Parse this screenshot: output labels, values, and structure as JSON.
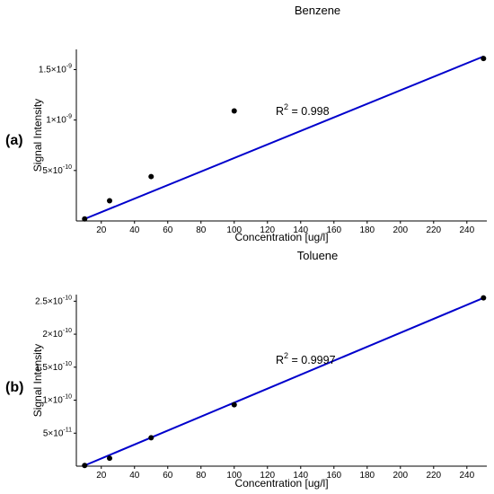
{
  "chart_data": [
    {
      "type": "scatter",
      "panel_label": "(a)",
      "title": "Benzene",
      "xlabel": "Concentration [ug/l]",
      "ylabel": "Signal Intensity",
      "xlim": [
        5,
        252
      ],
      "ylim": [
        0,
        1.7e-09
      ],
      "x_ticks": [
        20,
        40,
        60,
        80,
        100,
        120,
        140,
        160,
        180,
        200,
        220,
        240
      ],
      "y_ticks": [
        {
          "value": 5e-10,
          "mantissa": "5",
          "exponent": "-10"
        },
        {
          "value": 1e-09,
          "mantissa": "1",
          "exponent": "-9"
        },
        {
          "value": 1.5e-09,
          "mantissa": "1.5",
          "exponent": "-9"
        }
      ],
      "points": [
        {
          "x": 10,
          "y": 2e-11
        },
        {
          "x": 25,
          "y": 2e-10
        },
        {
          "x": 50,
          "y": 4.4e-10
        },
        {
          "x": 100,
          "y": 1.09e-09
        },
        {
          "x": 250,
          "y": 1.61e-09
        }
      ],
      "fit_line": {
        "x": [
          10,
          250
        ],
        "y": [
          2e-11,
          1.63e-09
        ]
      },
      "annotation": {
        "text_main": "R",
        "superscript": "2",
        "text_value": " = 0.998",
        "x": 125,
        "y": 1.05e-09
      },
      "point_color": "#000000",
      "line_color": "#0000cc"
    },
    {
      "type": "scatter",
      "panel_label": "(b)",
      "title": "Toluene",
      "xlabel": "Concentration [ug/l]",
      "ylabel": "Signal Intensity",
      "xlim": [
        5,
        252
      ],
      "ylim": [
        0,
        2.6e-10
      ],
      "x_ticks": [
        20,
        40,
        60,
        80,
        100,
        120,
        140,
        160,
        180,
        200,
        220,
        240
      ],
      "y_ticks": [
        {
          "value": 5e-11,
          "mantissa": "5",
          "exponent": "-11"
        },
        {
          "value": 1e-10,
          "mantissa": "1",
          "exponent": "-10"
        },
        {
          "value": 1.5e-10,
          "mantissa": "1.5",
          "exponent": "-10"
        },
        {
          "value": 2e-10,
          "mantissa": "2",
          "exponent": "-10"
        },
        {
          "value": 2.5e-10,
          "mantissa": "2.5",
          "exponent": "-10"
        }
      ],
      "points": [
        {
          "x": 10,
          "y": 1e-12
        },
        {
          "x": 25,
          "y": 1.2e-11
        },
        {
          "x": 50,
          "y": 4.3e-11
        },
        {
          "x": 100,
          "y": 9.3e-11
        },
        {
          "x": 250,
          "y": 2.55e-10
        }
      ],
      "fit_line": {
        "x": [
          10,
          250
        ],
        "y": [
          1e-12,
          2.55e-10
        ]
      },
      "annotation": {
        "text_main": "R",
        "superscript": "2",
        "text_value": " = 0.9997",
        "x": 125,
        "y": 1.55e-10
      },
      "point_color": "#000000",
      "line_color": "#0000cc"
    }
  ]
}
